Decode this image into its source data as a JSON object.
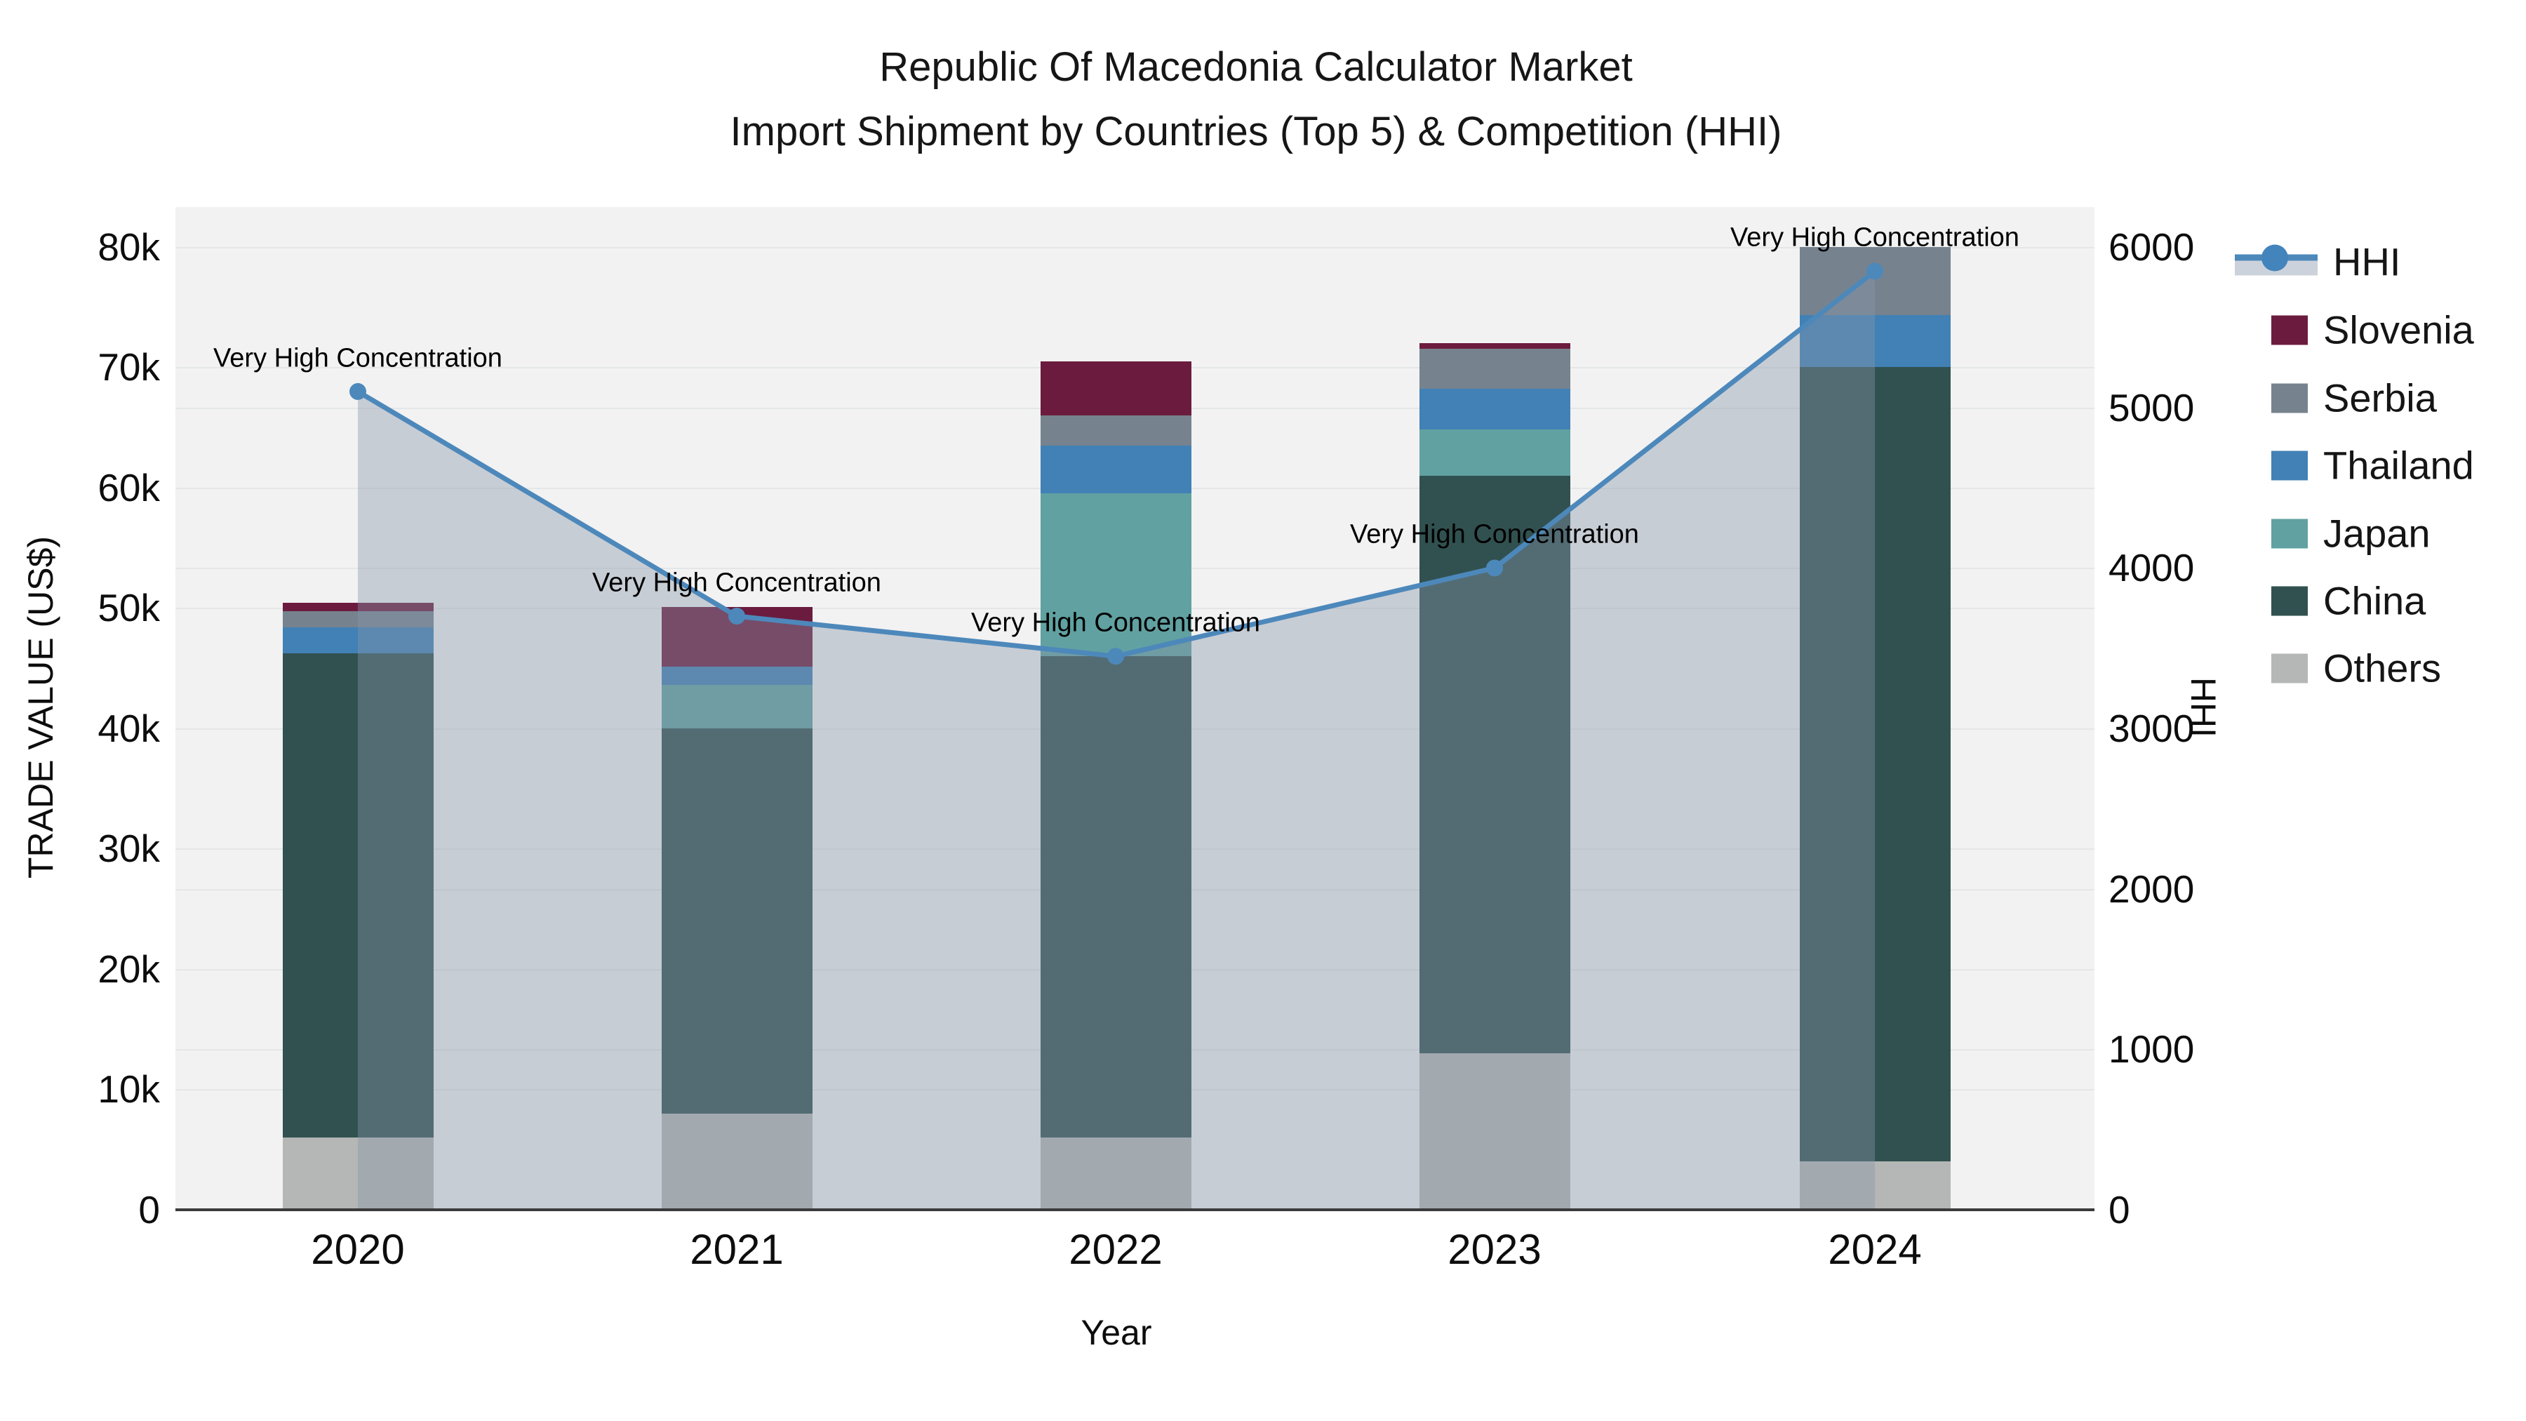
{
  "title": {
    "line1": "Republic Of Macedonia Calculator Market",
    "line2": "Import Shipment by Countries (Top 5) & Competition (HHI)"
  },
  "chart_data": {
    "type": "bar+line",
    "categories": [
      "2020",
      "2021",
      "2022",
      "2023",
      "2024"
    ],
    "x_title": "Year",
    "y_left": {
      "title": "TRADE VALUE (US$)",
      "range": [
        0,
        83300
      ],
      "grid": true,
      "ticks": [
        {
          "label": "0",
          "v": 0
        },
        {
          "label": "10k",
          "v": 10000
        },
        {
          "label": "20k",
          "v": 20000
        },
        {
          "label": "30k",
          "v": 30000
        },
        {
          "label": "40k",
          "v": 40000
        },
        {
          "label": "50k",
          "v": 50000
        },
        {
          "label": "60k",
          "v": 60000
        },
        {
          "label": "70k",
          "v": 70000
        },
        {
          "label": "80k",
          "v": 80000
        }
      ]
    },
    "y_right": {
      "title": "HHI",
      "range": [
        0,
        6250
      ],
      "grid": true,
      "ticks": [
        {
          "label": "0",
          "v": 0
        },
        {
          "label": "1000",
          "v": 1000
        },
        {
          "label": "2000",
          "v": 2000
        },
        {
          "label": "3000",
          "v": 3000
        },
        {
          "label": "4000",
          "v": 4000
        },
        {
          "label": "5000",
          "v": 5000
        },
        {
          "label": "6000",
          "v": 6000
        }
      ]
    },
    "stack_order_bottom_to_top": [
      "Others",
      "China",
      "Japan",
      "Thailand",
      "Serbia",
      "Slovenia"
    ],
    "series": [
      {
        "name": "Others",
        "color": "#b4b7b5",
        "values": [
          6000,
          8000,
          6000,
          13000,
          4000
        ]
      },
      {
        "name": "China",
        "color": "#315150",
        "values": [
          40200,
          32000,
          40000,
          48000,
          66000
        ]
      },
      {
        "name": "Japan",
        "color": "#61a1a1",
        "values": [
          0,
          3600,
          13500,
          3800,
          0
        ]
      },
      {
        "name": "Thailand",
        "color": "#4181b5",
        "values": [
          2200,
          1500,
          4000,
          3400,
          4300
        ]
      },
      {
        "name": "Serbia",
        "color": "#76838f",
        "values": [
          1300,
          0,
          2500,
          3300,
          5700
        ]
      },
      {
        "name": "Slovenia",
        "color": "#6b1c3e",
        "values": [
          700,
          5000,
          4500,
          500,
          0
        ]
      }
    ],
    "line": {
      "name": "HHI",
      "axis": "right",
      "color": "#4d88bb",
      "fill": "rgba(136,150,170,0.40)",
      "values": [
        5100,
        3700,
        3450,
        4000,
        5850
      ]
    },
    "annotations": [
      {
        "category": "2020",
        "text": "Very High Concentration"
      },
      {
        "category": "2021",
        "text": "Very High Concentration"
      },
      {
        "category": "2022",
        "text": "Very High Concentration"
      },
      {
        "category": "2023",
        "text": "Very High Concentration"
      },
      {
        "category": "2024",
        "text": "Very High Concentration"
      }
    ],
    "legend_order": [
      "HHI",
      "Slovenia",
      "Serbia",
      "Thailand",
      "Japan",
      "China",
      "Others"
    ],
    "legend_position": "right"
  },
  "colors": {
    "plot_background": "#f2f2f2",
    "figure_background": "#ffffff",
    "gridline": "#e5e6e7",
    "axis_line": "#3b3b3b",
    "hhi_line": "#4d88bb",
    "hhi_area": "rgba(136,150,170,0.40)"
  }
}
